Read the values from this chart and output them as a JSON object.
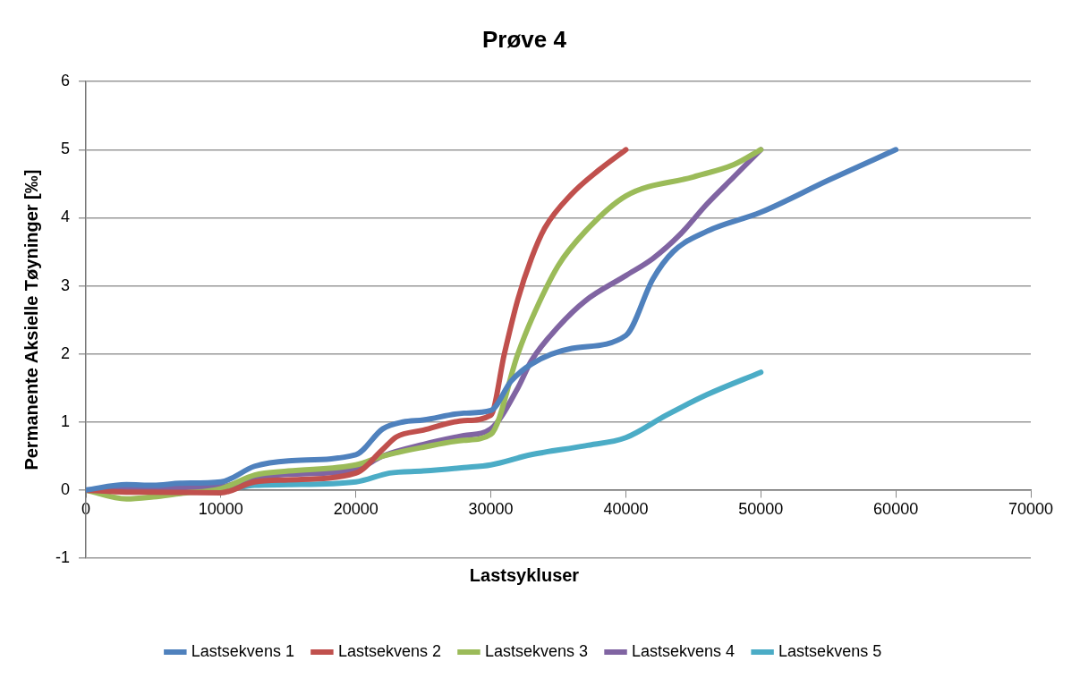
{
  "chart_data": {
    "type": "line",
    "title": "Prøve 4",
    "xlabel": "Lastsykluser",
    "ylabel": "Permanente Aksielle Tøyninger [‰]",
    "xlim": [
      0,
      70000
    ],
    "xticks": [
      0,
      10000,
      20000,
      30000,
      40000,
      50000,
      60000,
      70000
    ],
    "ylim": [
      -1,
      6
    ],
    "yticks": [
      -1,
      0,
      1,
      2,
      3,
      4,
      5,
      6
    ],
    "grid": "y",
    "legend": "bottom",
    "marker": "none",
    "line_style": "solid",
    "series": [
      {
        "name": "Lastsekvens 1",
        "color": "#4f81bd",
        "x": [
          0,
          3000,
          5000,
          7000,
          10000,
          12500,
          15000,
          20000,
          22000,
          23500,
          25000,
          28000,
          30000,
          31500,
          33000,
          36000,
          40000,
          42000,
          43500,
          46000,
          50000,
          55000,
          60000
        ],
        "values": [
          0,
          0.08,
          0.07,
          0.1,
          0.12,
          0.35,
          0.43,
          0.52,
          0.9,
          1.0,
          1.03,
          1.13,
          1.17,
          1.6,
          1.85,
          2.08,
          2.27,
          3.1,
          3.5,
          3.8,
          4.08,
          4.55,
          5.0
        ]
      },
      {
        "name": "Lastsekvens 2",
        "color": "#c0504d",
        "x": [
          0,
          3000,
          5000,
          10000,
          12500,
          15000,
          20000,
          22000,
          23000,
          25000,
          28000,
          30000,
          31000,
          32000,
          33000,
          34000,
          36000,
          38000,
          40000
        ],
        "values": [
          0,
          -0.03,
          -0.03,
          -0.04,
          0.12,
          0.15,
          0.25,
          0.6,
          0.78,
          0.88,
          1.02,
          1.1,
          2.0,
          2.8,
          3.4,
          3.85,
          4.35,
          4.7,
          5.0
        ]
      },
      {
        "name": "Lastsekvens 3",
        "color": "#9bbb59",
        "x": [
          0,
          3000,
          5000,
          7000,
          10000,
          12500,
          15000,
          20000,
          22000,
          25000,
          28000,
          30000,
          32000,
          33000,
          35000,
          37000,
          40000,
          45000,
          48000,
          50000
        ],
        "values": [
          0,
          -0.13,
          -0.1,
          -0.05,
          0.02,
          0.22,
          0.28,
          0.37,
          0.5,
          0.63,
          0.73,
          0.82,
          2.0,
          2.5,
          3.3,
          3.8,
          4.32,
          4.6,
          4.78,
          5.0
        ]
      },
      {
        "name": "Lastsekvens 4",
        "color": "#8064a2",
        "x": [
          0,
          5000,
          10000,
          12500,
          15000,
          20000,
          22000,
          25000,
          28000,
          30000,
          32000,
          33000,
          35000,
          37000,
          40000,
          42000,
          44000,
          46000,
          48000,
          50000
        ],
        "values": [
          0,
          0.03,
          0.05,
          0.18,
          0.23,
          0.3,
          0.5,
          0.67,
          0.8,
          0.9,
          1.5,
          1.9,
          2.4,
          2.78,
          3.15,
          3.4,
          3.75,
          4.2,
          4.6,
          5.0
        ]
      },
      {
        "name": "Lastsekvens 5",
        "color": "#4bacc6",
        "x": [
          0,
          10000,
          12500,
          15000,
          20000,
          22500,
          25000,
          28000,
          30000,
          33000,
          37000,
          40000,
          43000,
          46000,
          50000
        ],
        "values": [
          0,
          0,
          0.07,
          0.08,
          0.12,
          0.25,
          0.28,
          0.33,
          0.37,
          0.52,
          0.65,
          0.77,
          1.1,
          1.4,
          1.73
        ]
      }
    ]
  }
}
